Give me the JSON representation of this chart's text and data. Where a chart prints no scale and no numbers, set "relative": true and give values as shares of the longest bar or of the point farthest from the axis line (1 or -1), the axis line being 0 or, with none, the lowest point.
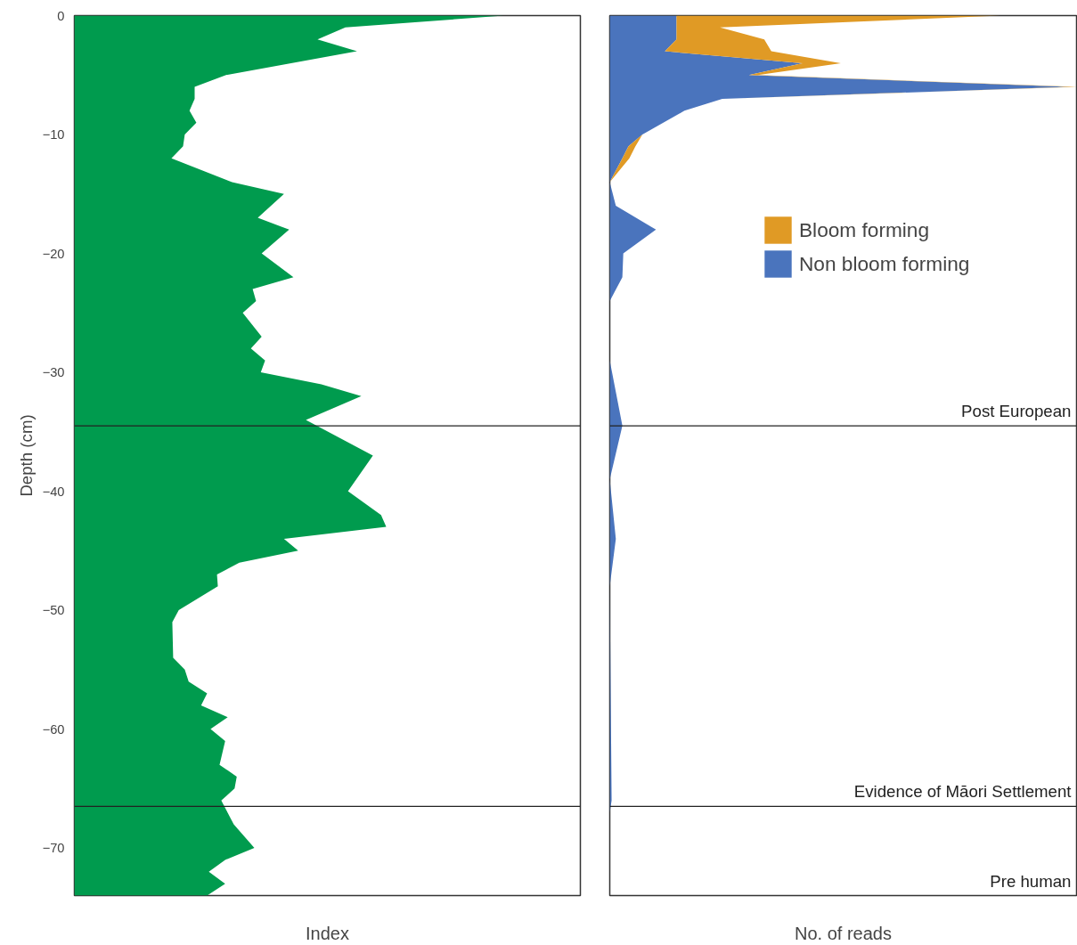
{
  "chart_data": [
    {
      "type": "area",
      "orientation": "horizontal",
      "relative": true,
      "xlabel": "Index",
      "ylabel": "Depth (cm)",
      "ylim": [
        -74,
        0
      ],
      "yticks": [
        0,
        -10,
        -20,
        -30,
        -40,
        -50,
        -60,
        -70
      ],
      "x": [
        0,
        -1,
        -2,
        -3,
        -5,
        -6,
        -7,
        -8,
        -9,
        -10,
        -11,
        -12,
        -14,
        -15,
        -17,
        -18,
        -20,
        -22,
        -23,
        -24,
        -25,
        -27,
        -28,
        -29,
        -30,
        -31,
        -32,
        -34,
        -37,
        -40,
        -42,
        -43,
        -44,
        -45,
        -46,
        -47,
        -48,
        -50,
        -51,
        -54,
        -55,
        -56,
        -57,
        -58,
        -59,
        -60,
        -61,
        -63,
        -64,
        -65,
        -66,
        -68,
        -70,
        -71,
        -72,
        -73,
        -74
      ],
      "series": [
        {
          "color": "#009b4e",
          "values": [
            1.0,
            0.631,
            0.566,
            0.658,
            0.353,
            0.28,
            0.28,
            0.268,
            0.284,
            0.257,
            0.253,
            0.226,
            0.367,
            0.488,
            0.427,
            0.5,
            0.436,
            0.51,
            0.415,
            0.423,
            0.392,
            0.436,
            0.411,
            0.444,
            0.434,
            0.575,
            0.668,
            0.539,
            0.695,
            0.637,
            0.714,
            0.726,
            0.488,
            0.521,
            0.384,
            0.332,
            0.334,
            0.243,
            0.228,
            0.23,
            0.257,
            0.266,
            0.309,
            0.295,
            0.357,
            0.317,
            0.351,
            0.338,
            0.378,
            0.373,
            0.342,
            0.371,
            0.419,
            0.351,
            0.313,
            0.351,
            0.309
          ]
        }
      ],
      "ref_lines": [
        {
          "axis": "y",
          "value": -34.5,
          "color": "#222222"
        },
        {
          "axis": "y",
          "value": -66.5,
          "color": "#222222"
        }
      ]
    },
    {
      "type": "area",
      "orientation": "horizontal",
      "relative": true,
      "stacked": true,
      "xlabel": "No. of reads",
      "ylim": [
        -74,
        0
      ],
      "legend": "top right",
      "tick_labels": false,
      "x": [
        0,
        -1,
        -2,
        -3,
        -4,
        -5,
        -6,
        -7,
        -8,
        -10,
        -11,
        -12,
        -14,
        -16,
        -18,
        -20,
        -22,
        -24,
        -29,
        -34.5,
        -39,
        -44,
        -48,
        -66,
        -67,
        -74
      ],
      "series": [
        {
          "name": "Non bloom forming",
          "color": "#4a74bd",
          "values": [
            0.143,
            0.143,
            0.143,
            0.118,
            0.413,
            0.298,
            0.985,
            0.241,
            0.16,
            0.07,
            0.04,
            0.027,
            0,
            0.013,
            0.099,
            0.029,
            0.027,
            0,
            0,
            0.027,
            0,
            0.013,
            0,
            0.004,
            0,
            0
          ]
        },
        {
          "name": "Bloom forming",
          "color": "#e09a25",
          "values": [
            0.694,
            0.093,
            0.188,
            0.228,
            0.082,
            0.019,
            0.015,
            0,
            0,
            0,
            0.015,
            0.015,
            0,
            0,
            0,
            0,
            0,
            0,
            0,
            0,
            0,
            0,
            0,
            0,
            0,
            0
          ]
        }
      ],
      "ref_lines": [
        {
          "axis": "y",
          "value": -34.5,
          "color": "#222222"
        },
        {
          "axis": "y",
          "value": -66.5,
          "color": "#222222"
        }
      ],
      "annotations": [
        {
          "text": "Post European",
          "y": -34.5
        },
        {
          "text": "Evidence of Māori Settlement",
          "y": -66.5
        },
        "Pre human"
      ]
    }
  ]
}
